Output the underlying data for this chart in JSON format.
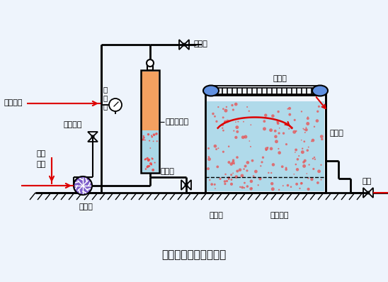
{
  "title": "部分溶气气浮工艺流程",
  "labels": {
    "air_in": "空气进入",
    "pressure_gauge_1": "压",
    "pressure_gauge_2": "力",
    "pressure_gauge_3": "表",
    "pressure_tank": "压力溶气罐",
    "vent_valve": "放气阀",
    "chemical": "化学药剂",
    "raw_water": "原水",
    "inlet": "进入",
    "pump": "加压泵",
    "pressure_reduce": "减压阀",
    "scraper": "刮渣机",
    "flotation_pool_right": "气浮池",
    "flotation_pool_bottom": "气浮池",
    "collection": "集水系统",
    "outlet_water": "出水"
  },
  "colors": {
    "tank_fill_upper": "#f4a060",
    "tank_fill_lower": "#aad8e8",
    "flotation_water": "#aad8e8",
    "pump_color": "#8060cc",
    "line_color": "#000000",
    "red_color": "#dd0000",
    "bubble_color": "#ee4444",
    "scraper_color": "#222222",
    "roller_color": "#6090e0",
    "bg_color": "#eef4fc"
  },
  "layout": {
    "fig_w": 5.48,
    "fig_h": 3.98,
    "dpi": 100
  }
}
